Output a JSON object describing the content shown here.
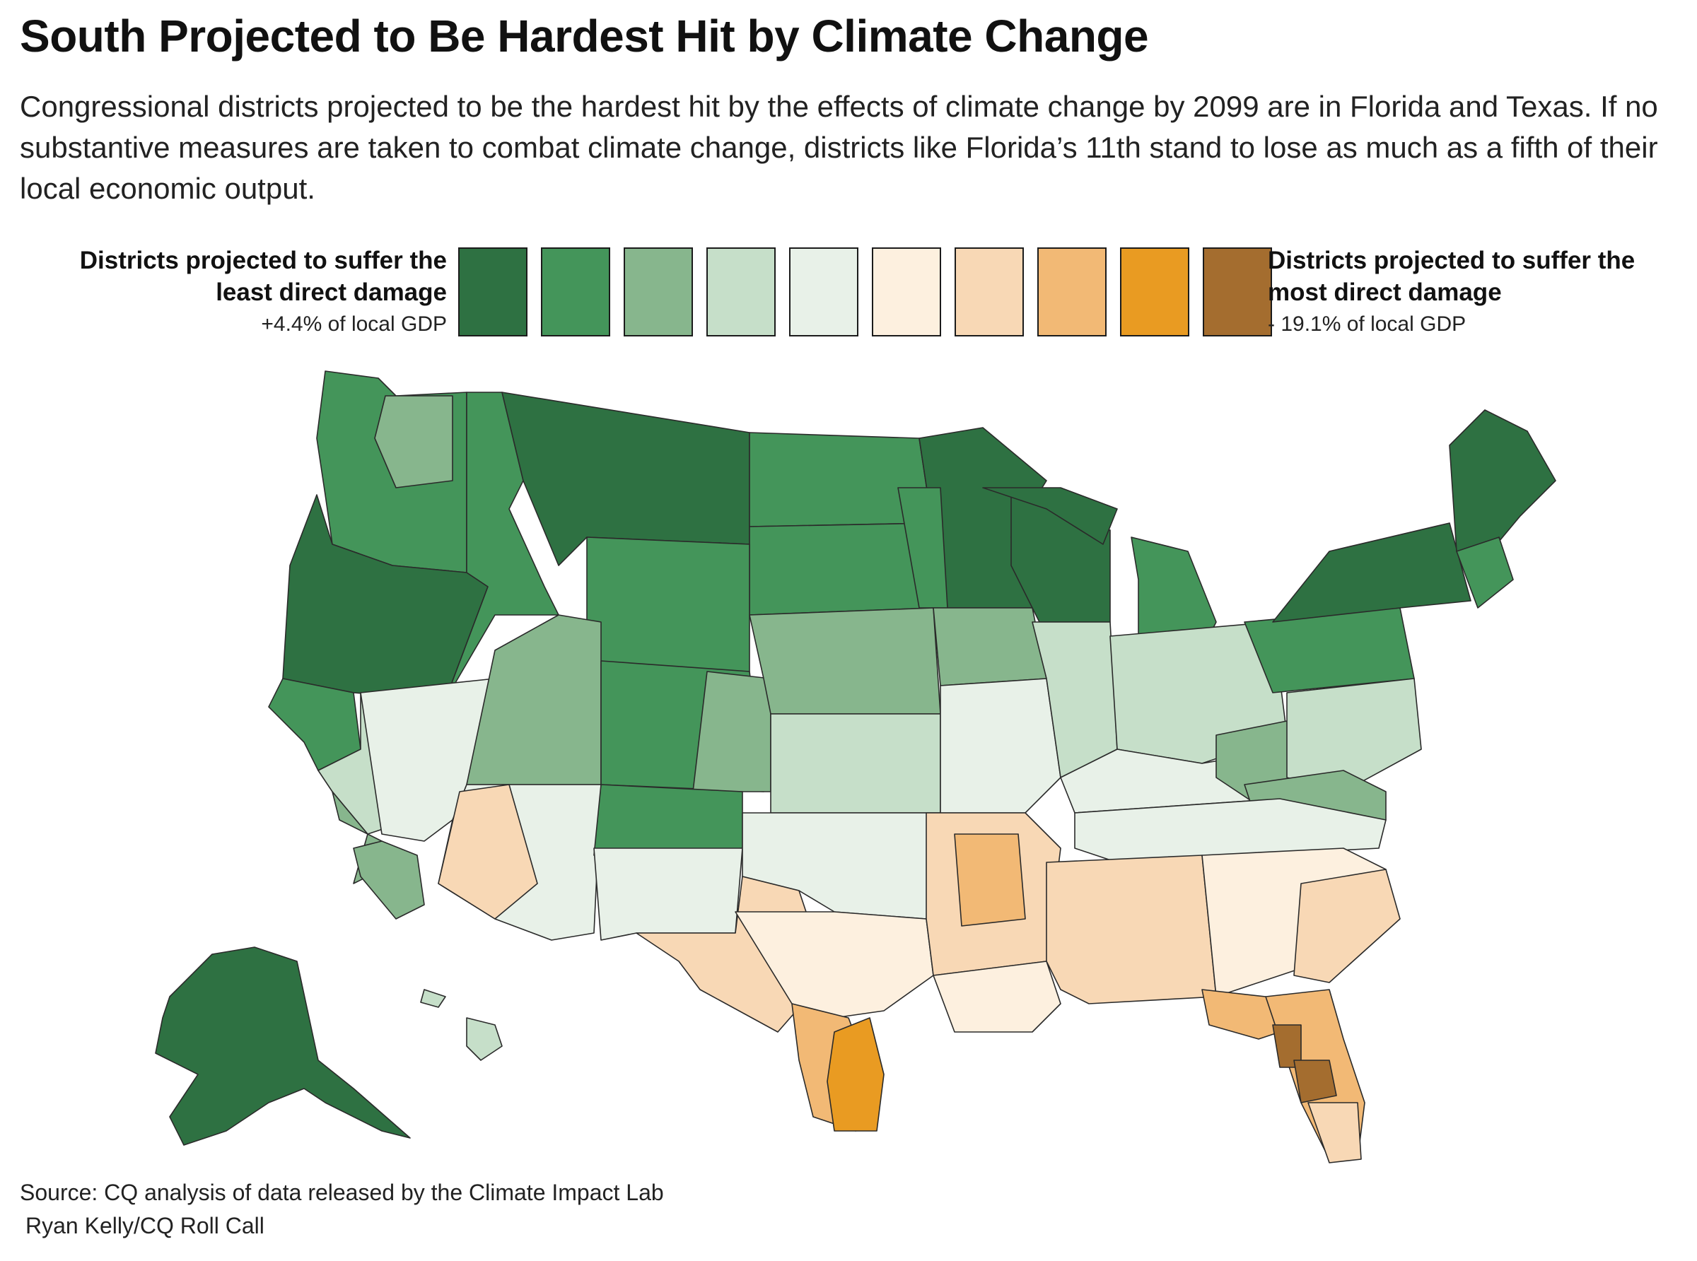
{
  "header": {
    "title": "South Projected to Be Hardest Hit by Climate Change",
    "subtitle": "Congressional districts projected to be the hardest hit by the effects of climate change by 2099 are in Florida and Texas. If no substantive measures are taken to combat climate change, districts like Florida’s 11th stand to lose as much as a fifth of their local economic output."
  },
  "legend": {
    "left_label": "Districts projected to suffer the least direct damage",
    "left_value": "+4.4% of local GDP",
    "right_label": "Districts projected to suffer the most direct damage",
    "right_value": "- 19.1% of local GDP",
    "colors": [
      "#2e7142",
      "#44955a",
      "#87b68d",
      "#c6dfc9",
      "#e8f1e8",
      "#fdf0df",
      "#f8d8b5",
      "#f2b975",
      "#e99b22",
      "#a46d2f"
    ]
  },
  "map_colors": {
    "darkgreen": "#2e7142",
    "green": "#44955a",
    "midgreen": "#87b68d",
    "lightgreen": "#c6dfc9",
    "palegreen": "#e8f1e8",
    "cream": "#fdf0df",
    "peach": "#f8d8b5",
    "tan": "#f2b975",
    "orange": "#e99b22",
    "brown": "#a46d2f"
  },
  "footer": {
    "source": "Source: CQ analysis of data released by the Climate Impact Lab",
    "credit": "Ryan Kelly/CQ Roll Call"
  }
}
